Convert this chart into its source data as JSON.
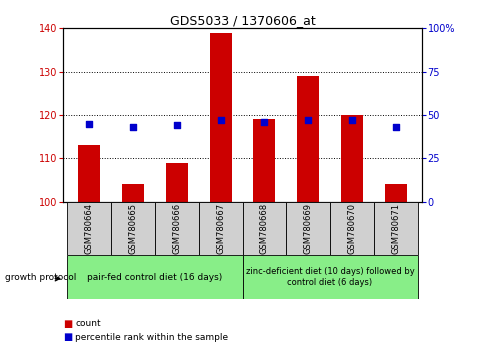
{
  "title": "GDS5033 / 1370606_at",
  "samples": [
    "GSM780664",
    "GSM780665",
    "GSM780666",
    "GSM780667",
    "GSM780668",
    "GSM780669",
    "GSM780670",
    "GSM780671"
  ],
  "counts": [
    113,
    104,
    109,
    139,
    119,
    129,
    120,
    104
  ],
  "percentiles": [
    45,
    43,
    44,
    47,
    46,
    47,
    47,
    43
  ],
  "ylim_left": [
    100,
    140
  ],
  "ylim_right": [
    0,
    100
  ],
  "yticks_left": [
    100,
    110,
    120,
    130,
    140
  ],
  "yticks_right": [
    0,
    25,
    50,
    75,
    100
  ],
  "ytick_labels_right": [
    "0",
    "25",
    "50",
    "75",
    "100%"
  ],
  "bar_color": "#cc0000",
  "dot_color": "#0000cc",
  "bar_bottom": 100,
  "group1_indices": [
    0,
    1,
    2,
    3
  ],
  "group2_indices": [
    4,
    5,
    6,
    7
  ],
  "group1_label": "pair-fed control diet (16 days)",
  "group2_label": "zinc-deficient diet (10 days) followed by\ncontrol diet (6 days)",
  "group_protocol_label": "growth protocol",
  "legend_count_label": "count",
  "legend_percentile_label": "percentile rank within the sample",
  "tick_label_color_left": "#cc0000",
  "tick_label_color_right": "#0000cc",
  "bg_color_group": "#88ee88",
  "sample_box_color": "#d0d0d0",
  "figsize": [
    4.85,
    3.54
  ],
  "dpi": 100
}
